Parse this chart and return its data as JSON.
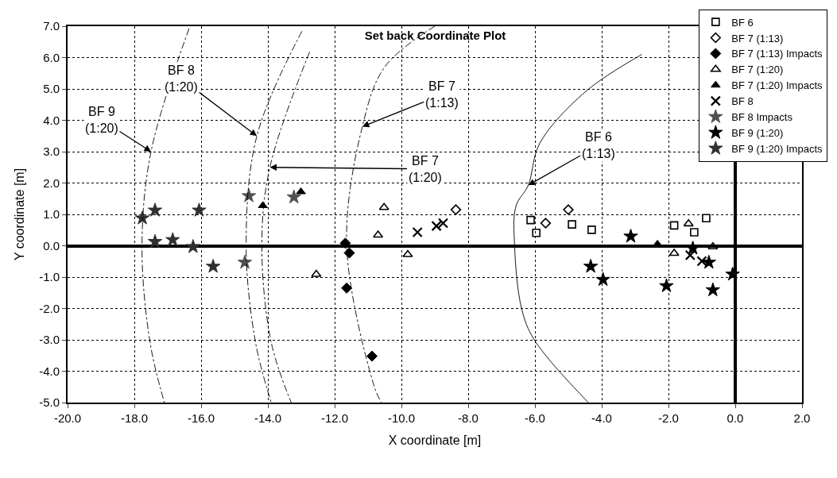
{
  "chart_data": {
    "type": "scatter",
    "title": "Set back Coordinate Plot",
    "xlabel": "X coordinate [m]",
    "ylabel": "Y coordinate [m]",
    "xlim": [
      -20,
      2
    ],
    "ylim": [
      -5,
      7
    ],
    "xticks": [
      {
        "value": -20,
        "label": "-20.0"
      },
      {
        "value": -18,
        "label": "-18.0"
      },
      {
        "value": -16,
        "label": "-16.0"
      },
      {
        "value": -14,
        "label": "-14.0"
      },
      {
        "value": -12,
        "label": "-12.0"
      },
      {
        "value": -10,
        "label": "-10.0"
      },
      {
        "value": -8,
        "label": "-8.0"
      },
      {
        "value": -6,
        "label": "-6.0"
      },
      {
        "value": -4,
        "label": "-4.0"
      },
      {
        "value": -2,
        "label": "-2.0"
      },
      {
        "value": 0,
        "label": "0.0"
      },
      {
        "value": 2,
        "label": "2.0"
      }
    ],
    "yticks": [
      {
        "value": -5,
        "label": "-5.0"
      },
      {
        "value": -4,
        "label": "-4.0"
      },
      {
        "value": -3,
        "label": "-3.0"
      },
      {
        "value": -2,
        "label": "-2.0"
      },
      {
        "value": -1,
        "label": "-1.0"
      },
      {
        "value": 0,
        "label": "0.0"
      },
      {
        "value": 1,
        "label": "1.0"
      },
      {
        "value": 2,
        "label": "2.0"
      },
      {
        "value": 3,
        "label": "3.0"
      },
      {
        "value": 4,
        "label": "4.0"
      },
      {
        "value": 5,
        "label": "5.0"
      },
      {
        "value": 6,
        "label": "6.0"
      },
      {
        "value": 7,
        "label": "7.0"
      }
    ],
    "grid": true,
    "legend": "top right",
    "series": [
      {
        "name": "BF 6",
        "color": "#000000",
        "marker": "square-open",
        "x": [
          -6.13,
          -5.96,
          -4.89,
          -4.3,
          -1.83,
          -1.23,
          -0.87
        ],
        "values": [
          0.82,
          0.41,
          0.68,
          0.51,
          0.65,
          0.43,
          0.88
        ]
      },
      {
        "name": "BF 7 (1:13)",
        "color": "#000000",
        "marker": "diamond-open",
        "x": [
          -8.37,
          -5.68,
          -5.0
        ],
        "values": [
          1.15,
          0.72,
          1.15
        ]
      },
      {
        "name": "BF 7 (1:13) Impacts",
        "color": "#000000",
        "marker": "diamond",
        "x": [
          -11.68,
          -11.56,
          -11.64,
          -10.88
        ],
        "values": [
          0.08,
          -0.23,
          -1.35,
          -3.52
        ]
      },
      {
        "name": "BF 7 (1:20)",
        "color": "#000000",
        "marker": "triangle-open",
        "x": [
          -10.52,
          -10.7,
          -9.81,
          -12.55,
          -1.83,
          -0.67,
          -1.4
        ],
        "values": [
          1.22,
          0.34,
          -0.28,
          -0.91,
          -0.24,
          -0.03,
          0.7
        ]
      },
      {
        "name": "BF 7 (1:20) Impacts",
        "color": "#000000",
        "marker": "triangle",
        "x": [
          -14.15,
          -13.01,
          -2.33
        ],
        "values": [
          1.28,
          1.72,
          0.05
        ]
      },
      {
        "name": "BF 8",
        "color": "#000000",
        "marker": "cross",
        "x": [
          -9.52,
          -8.95,
          -8.75,
          -1.35,
          -1.0
        ],
        "values": [
          0.43,
          0.63,
          0.72,
          -0.3,
          -0.49
        ]
      },
      {
        "name": "BF 8 Impacts",
        "color": "#505050",
        "marker": "star",
        "x": [
          -14.69,
          -14.57,
          -13.22
        ],
        "values": [
          -0.53,
          1.59,
          1.55
        ]
      },
      {
        "name": "BF 9 (1:20)",
        "color": "#000000",
        "marker": "star",
        "x": [
          -4.33,
          -3.96,
          -3.13,
          -2.06,
          -1.27,
          -0.79,
          -0.67,
          -0.08
        ],
        "values": [
          -0.66,
          -1.08,
          0.3,
          -1.28,
          -0.08,
          -0.53,
          -1.41,
          -0.91
        ]
      },
      {
        "name": "BF 9 (1:20) Impacts",
        "color": "#303030",
        "marker": "star",
        "x": [
          -17.76,
          -17.38,
          -17.38,
          -16.85,
          -16.24,
          -16.06,
          -15.64
        ],
        "values": [
          0.88,
          1.13,
          0.13,
          0.19,
          -0.03,
          1.13,
          -0.66
        ]
      },
      {
        "type": "line",
        "color": "#000000",
        "line_style": "dashed",
        "marker": "none",
        "x": [
          -16.36,
          -17.5,
          -17.77,
          -17.53,
          -17.1
        ],
        "values": [
          6.93,
          3.0,
          0.0,
          -3.08,
          -5.0
        ]
      },
      {
        "type": "line",
        "color": "#000000",
        "line_style": "dashed",
        "marker": "none",
        "x": [
          -12.98,
          -14.33,
          -14.65,
          -14.37,
          -13.9
        ],
        "values": [
          6.84,
          3.5,
          0.0,
          -3.08,
          -5.0
        ]
      },
      {
        "type": "line",
        "color": "#000000",
        "line_style": "dashed",
        "marker": "none",
        "x": [
          -12.75,
          -13.94,
          -14.18,
          -13.9,
          -13.3
        ],
        "values": [
          6.18,
          2.5,
          0.0,
          -3.08,
          -5.0
        ]
      },
      {
        "type": "line",
        "color": "#000000",
        "line_style": "dashed",
        "marker": "none",
        "x": [
          -9.0,
          -10.5,
          -11.17,
          -11.64,
          -10.81,
          -10.6
        ],
        "values": [
          7.0,
          5.7,
          3.8,
          0.0,
          -4.5,
          -5.0
        ]
      },
      {
        "type": "line",
        "color": "#000000",
        "line_style": "solid",
        "marker": "none",
        "x": [
          -2.8,
          -4.5,
          -5.86,
          -6.2,
          -6.57,
          -6.61,
          -6.4,
          -6.02,
          -4.4
        ],
        "values": [
          6.1,
          4.9,
          3.26,
          1.93,
          1.26,
          0.0,
          -2.0,
          -3.0,
          -5.0
        ]
      }
    ],
    "annotations": [
      {
        "text": "BF 9\n(1:20)",
        "x": -17.5,
        "y": 3.0
      },
      {
        "text": "BF 8\n(1:20)",
        "x": -14.33,
        "y": 3.5
      },
      {
        "text": "BF 7\n(1:20)",
        "x": -13.94,
        "y": 2.5
      },
      {
        "text": "BF 7\n(1:13)",
        "x": -11.17,
        "y": 3.8
      },
      {
        "text": "BF 6\n(1:13)",
        "x": -6.2,
        "y": 1.93
      }
    ]
  }
}
